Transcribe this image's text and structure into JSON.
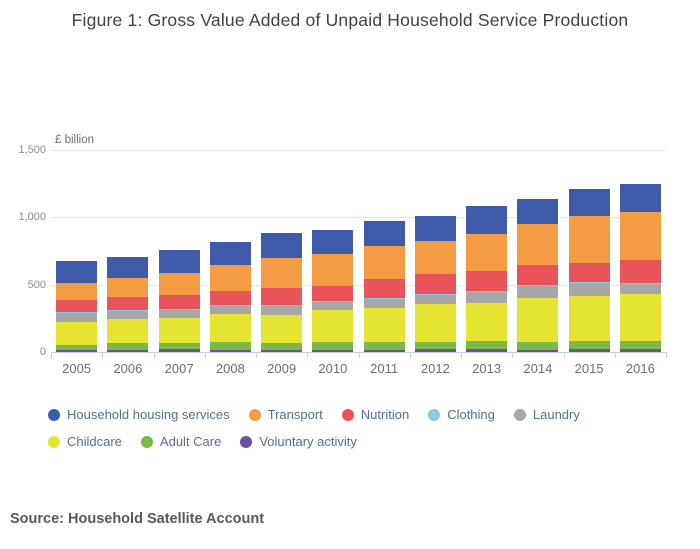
{
  "header": {
    "title": "Figure 1: Gross Value Added of Unpaid Household Service Production"
  },
  "source": {
    "text": "Source: Household Satellite Account"
  },
  "chart_data": {
    "type": "bar",
    "stacked": true,
    "title": "Figure 1: Gross Value Added of Unpaid Household Service Production",
    "unit_label": "£ billion",
    "xlabel": "",
    "ylabel": "£ billion",
    "ylim": [
      0,
      1500
    ],
    "grid": true,
    "legend_position": "bottom",
    "yticks": [
      {
        "label": "0",
        "value": 0
      },
      {
        "label": "500",
        "value": 500
      },
      {
        "label": "1,000",
        "value": 1000
      },
      {
        "label": "1,500",
        "value": 1500
      }
    ],
    "categories": [
      "2005",
      "2006",
      "2007",
      "2008",
      "2009",
      "2010",
      "2011",
      "2012",
      "2013",
      "2014",
      "2015",
      "2016"
    ],
    "stack_order_note": "series listed top-of-stack first; rendered bottom-up in reverse order",
    "series": [
      {
        "name": "Household housing services",
        "color": "#3d5ba9",
        "values": [
          167,
          155,
          176,
          172,
          184,
          177,
          184,
          180,
          204,
          189,
          199,
          205
        ]
      },
      {
        "name": "Transport",
        "color": "#f49c44",
        "values": [
          121,
          137,
          157,
          196,
          224,
          241,
          249,
          250,
          278,
          304,
          348,
          356
        ]
      },
      {
        "name": "Nutrition",
        "color": "#e8545a",
        "values": [
          94,
          99,
          105,
          105,
          125,
          110,
          137,
          149,
          147,
          149,
          145,
          167
        ]
      },
      {
        "name": "Clothing",
        "color": "#8bc7e8",
        "values": [
          5,
          5,
          5,
          5,
          5,
          6,
          6,
          6,
          6,
          6,
          6,
          6
        ]
      },
      {
        "name": "Laundry",
        "color": "#a7a7a7",
        "values": [
          68,
          62,
          63,
          61,
          68,
          62,
          72,
          66,
          84,
          86,
          93,
          81
        ]
      },
      {
        "name": "Childcare",
        "color": "#e6e433",
        "values": [
          168,
          175,
          188,
          207,
          207,
          236,
          251,
          281,
          286,
          332,
          338,
          349
        ]
      },
      {
        "name": "Adult Care",
        "color": "#7bba45",
        "values": [
          37,
          52,
          45,
          58,
          55,
          58,
          58,
          55,
          57,
          55,
          60,
          60
        ]
      },
      {
        "name": "Voluntary activity",
        "color": "#6b51a3",
        "values": [
          17,
          18,
          20,
          16,
          15,
          18,
          16,
          20,
          21,
          17,
          21,
          20
        ]
      }
    ],
    "totals": [
      677,
      703,
      759,
      820,
      883,
      908,
      973,
      1007,
      1083,
      1138,
      1210,
      1244
    ]
  }
}
